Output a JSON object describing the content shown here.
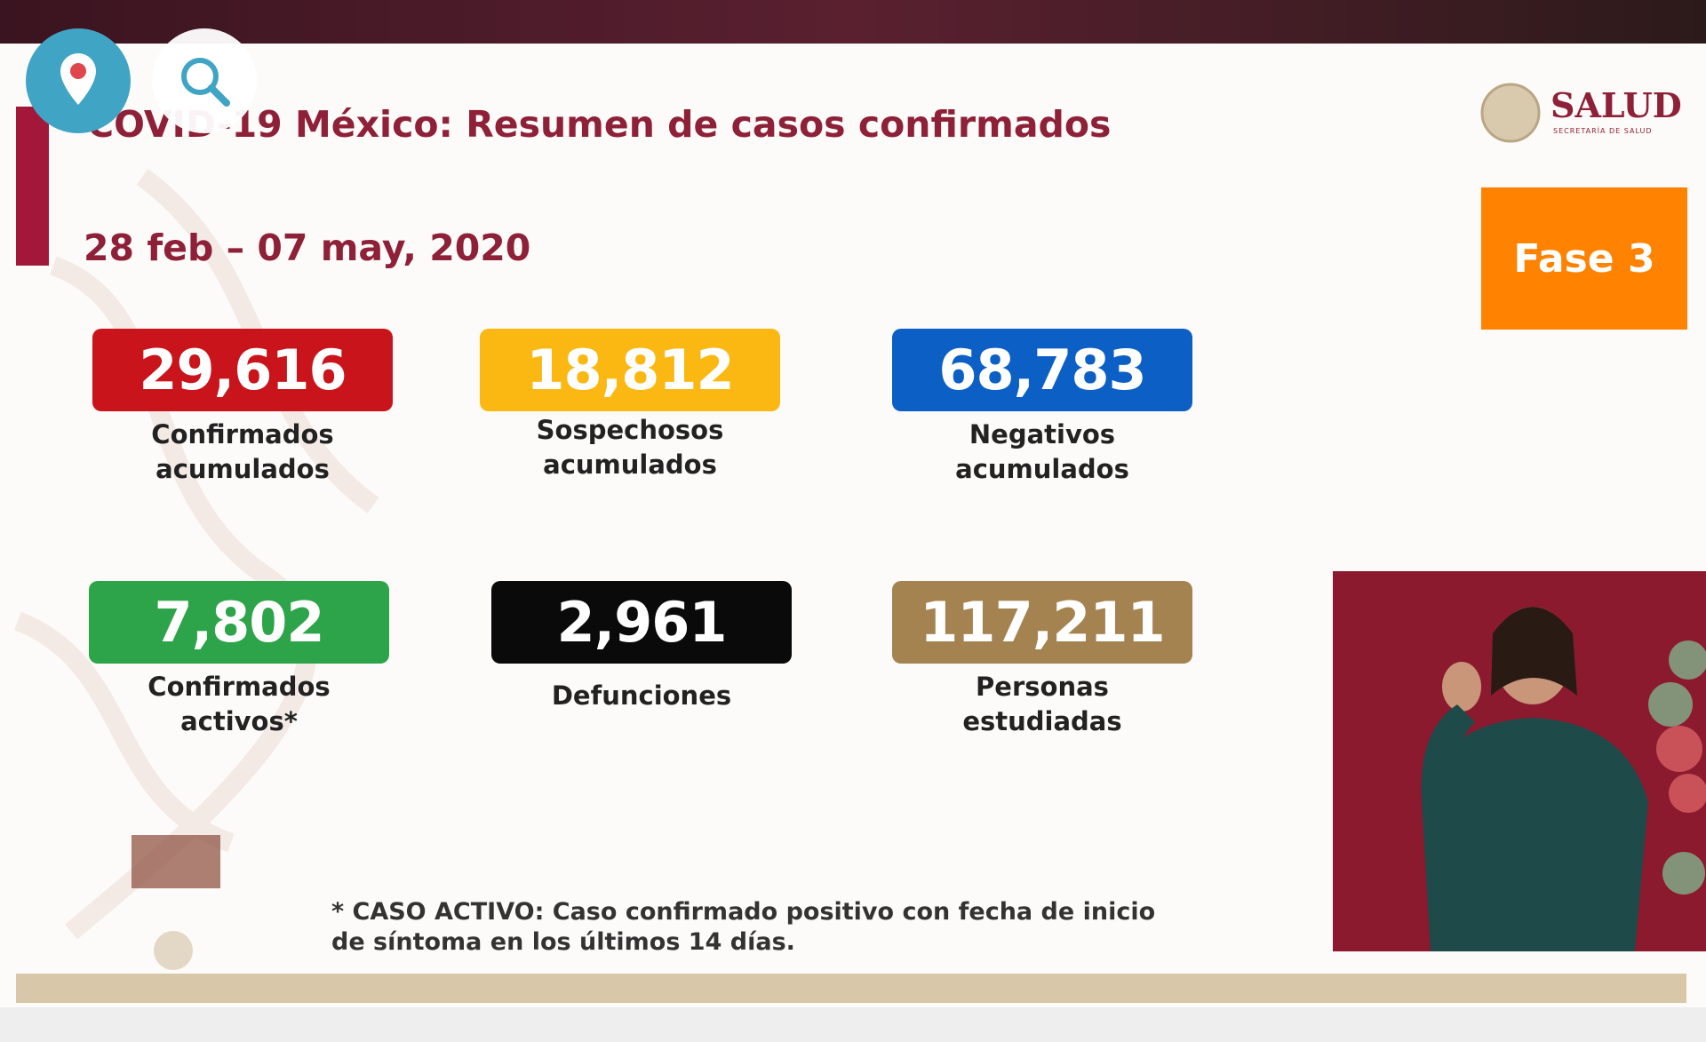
{
  "header": {
    "title": "COVID-19 México: Resumen de casos confirmados",
    "date": "28 feb – 07 may, 2020"
  },
  "logo": {
    "name": "SALUD",
    "subtitle": "SECRETARÍA DE SALUD"
  },
  "phase": "Fase 3",
  "stats": [
    {
      "value": "29,616",
      "label": [
        "Confirmados",
        "acumulados"
      ],
      "color": "#c8141a"
    },
    {
      "value": "18,812",
      "label": [
        "Sospechosos",
        "acumulados"
      ],
      "color": "#fbb813"
    },
    {
      "value": "68,783",
      "label": [
        "Negativos",
        "acumulados"
      ],
      "color": "#0c5fc4"
    },
    {
      "value": "7,802",
      "label": [
        "Confirmados",
        "activos*"
      ],
      "color": "#2ea44a"
    },
    {
      "value": "2,961",
      "label": [
        "Defunciones"
      ],
      "color": "#0a0a0a"
    },
    {
      "value": "117,211",
      "label": [
        "Personas",
        "estudiadas"
      ],
      "color": "#a48351"
    }
  ],
  "footnote": [
    "* CASO ACTIVO: Caso confirmado positivo con fecha de inicio",
    "de síntoma en los últimos 14 días."
  ]
}
